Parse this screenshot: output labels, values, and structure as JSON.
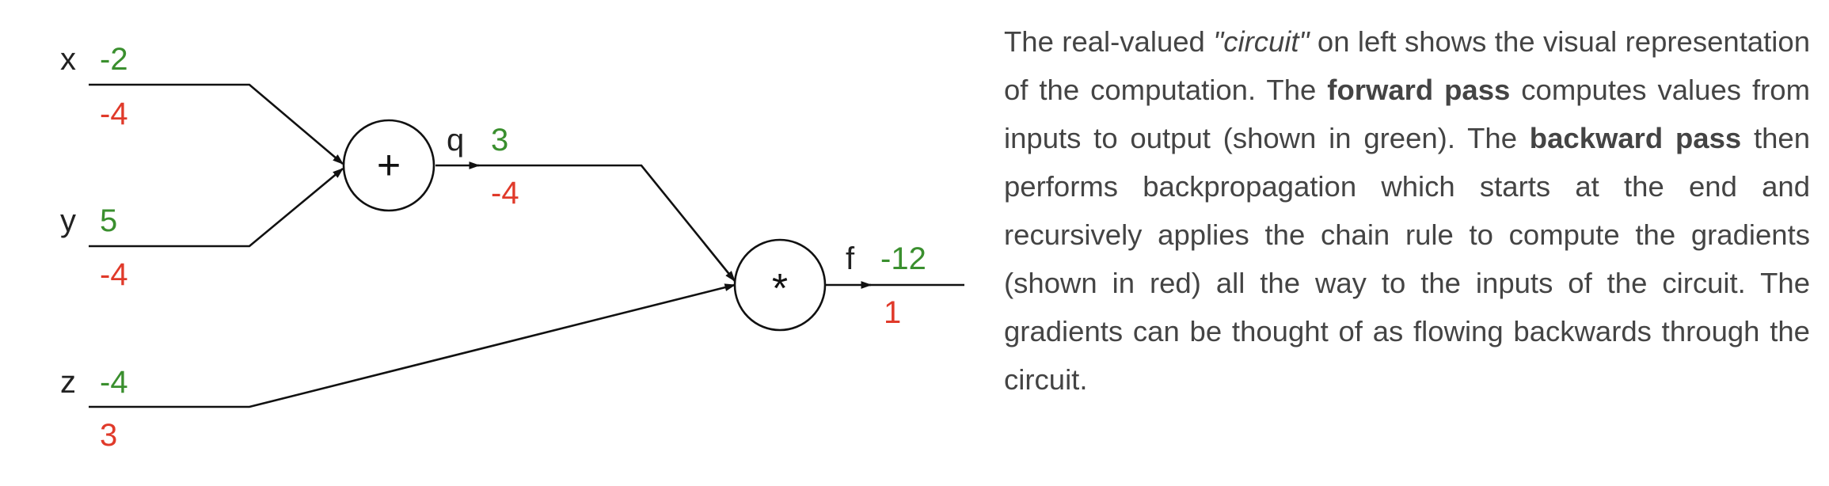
{
  "circuit": {
    "inputs": [
      {
        "name": "x",
        "forward": "-2",
        "gradient": "-4"
      },
      {
        "name": "y",
        "forward": "5",
        "gradient": "-4"
      },
      {
        "name": "z",
        "forward": "-4",
        "gradient": "3"
      }
    ],
    "add_gate": {
      "symbol": "+",
      "output_name": "q",
      "forward": "3",
      "gradient": "-4"
    },
    "mul_gate": {
      "symbol": "*",
      "output_name": "f",
      "forward": "-12",
      "gradient": "1"
    },
    "colors": {
      "forward": "#3a8f2e",
      "gradient": "#e03a2a"
    }
  },
  "explanation": {
    "p1": "The real-valued ",
    "circuit_quoted": "\"circuit\"",
    "p2": " on left shows the visual representation of the computation. The ",
    "forward_pass": "forward pass",
    "p3": " computes values from inputs to output (shown in green). The ",
    "backward_pass": "backward pass",
    "p4": " then performs backpropagation which starts at the end and recursively applies the chain rule to compute the gradients (shown in red) all the way to the inputs of the circuit. The gradients can be thought of as flowing backwards through the circuit."
  }
}
